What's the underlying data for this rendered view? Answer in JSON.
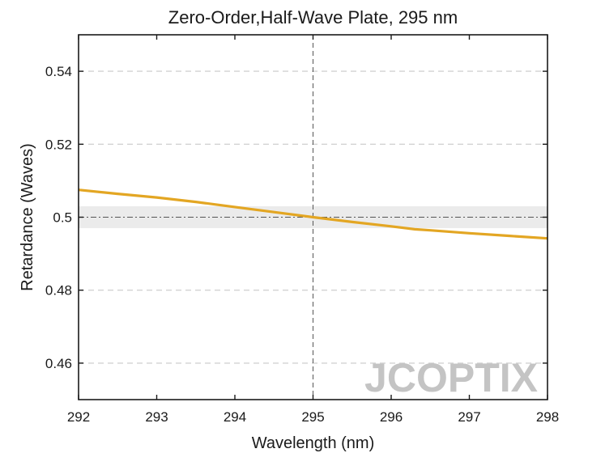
{
  "chart_data": {
    "type": "line",
    "title": "Zero-Order,Half-Wave Plate, 295 nm",
    "xlabel": "Wavelength (nm)",
    "ylabel": "Retardance (Waves)",
    "xlim": [
      292,
      298
    ],
    "ylim": [
      0.45,
      0.55
    ],
    "xticks": [
      292,
      293,
      294,
      295,
      296,
      297,
      298
    ],
    "xtick_labels": [
      "292",
      "293",
      "294",
      "295",
      "296",
      "297",
      "298"
    ],
    "yticks": [
      0.46,
      0.48,
      0.5,
      0.52,
      0.54
    ],
    "ytick_labels": [
      "0.46",
      "0.48",
      "0.5",
      "0.52",
      "0.54"
    ],
    "grid": "horizontal-dashed",
    "tolerance_band": [
      0.497,
      0.503
    ],
    "reference_x": 295,
    "reference_y": 0.5,
    "series": [
      {
        "color": "#E3A623",
        "x": [
          292,
          292.5,
          293,
          293.5,
          294,
          294.5,
          295,
          295.5,
          296,
          296.3,
          296.5,
          297,
          297.5,
          298
        ],
        "y": [
          0.5075,
          0.5064,
          0.5054,
          0.5042,
          0.5028,
          0.5014,
          0.5,
          0.4987,
          0.4975,
          0.4967,
          0.4964,
          0.4956,
          0.4949,
          0.4942
        ]
      }
    ],
    "watermark": "JCOPTIX"
  }
}
